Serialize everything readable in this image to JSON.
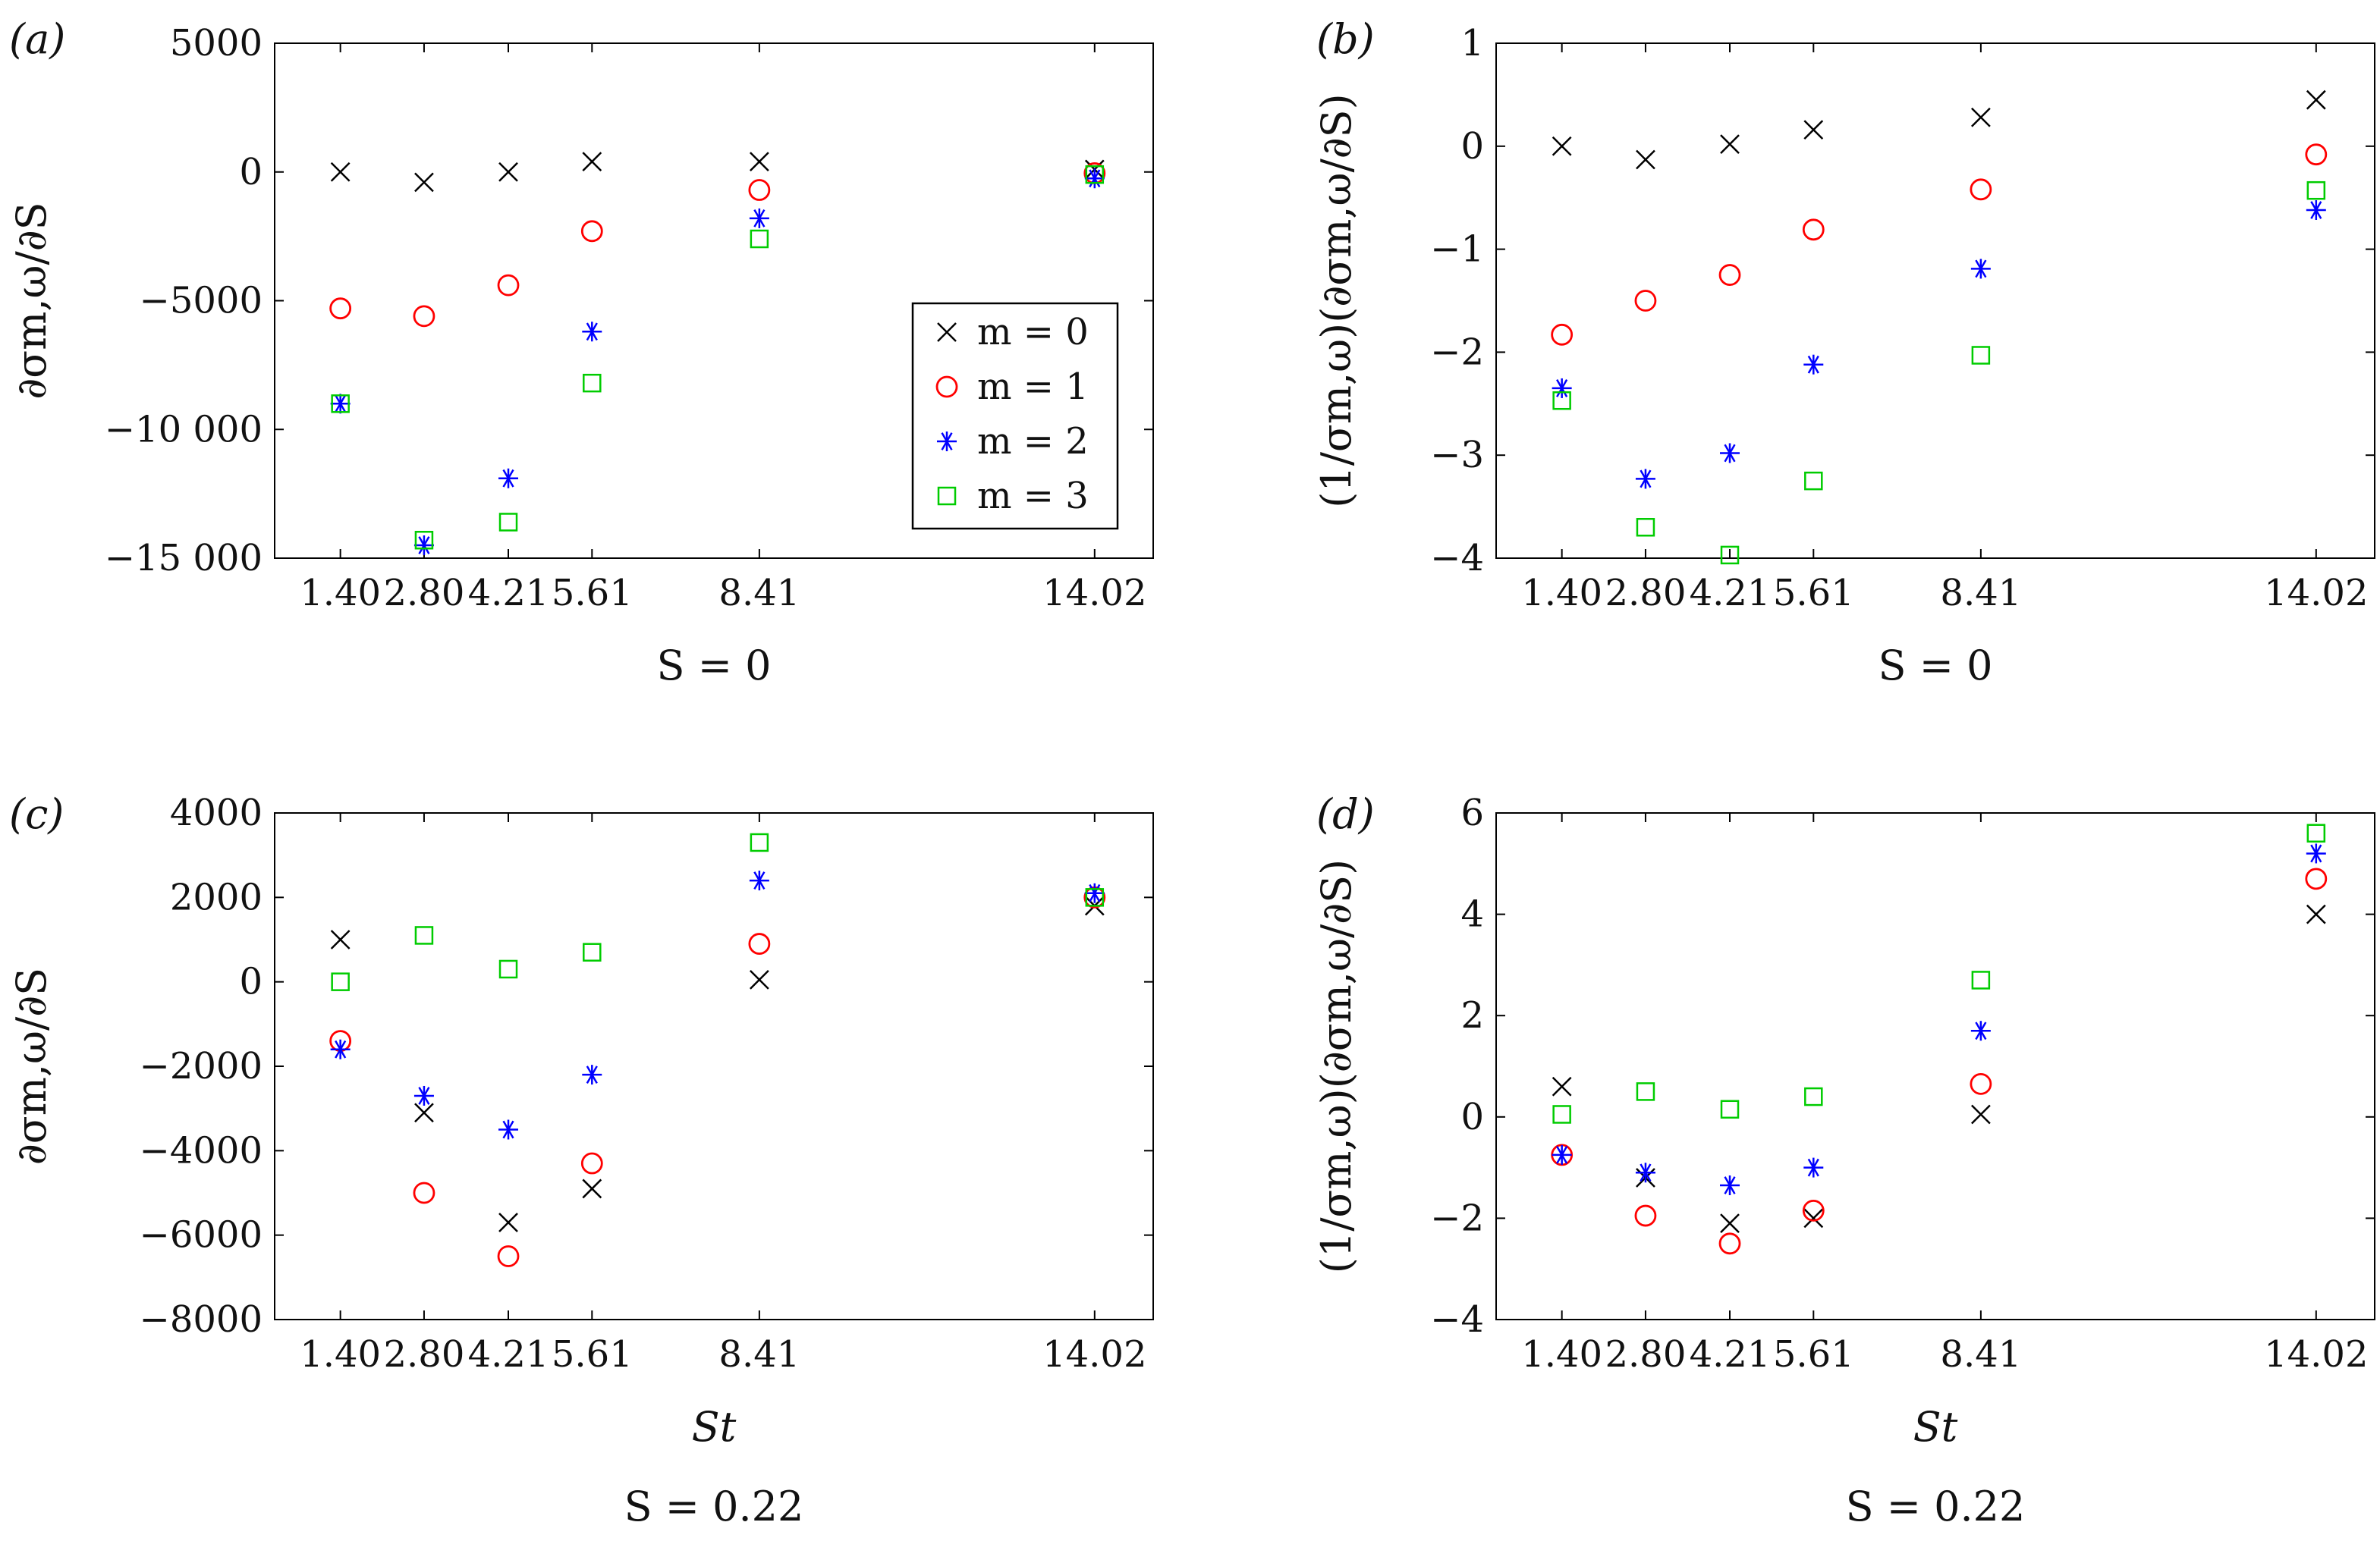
{
  "legend": {
    "entries": [
      {
        "key": "m0",
        "label": "m = 0",
        "marker": "x-cross",
        "color": "#000000"
      },
      {
        "key": "m1",
        "label": "m = 1",
        "marker": "circle",
        "color": "#ff0000"
      },
      {
        "key": "m2",
        "label": "m = 2",
        "marker": "asterisk",
        "color": "#0000ff"
      },
      {
        "key": "m3",
        "label": "m = 3",
        "marker": "square",
        "color": "#00cc00"
      }
    ]
  },
  "chart_data": [
    {
      "type": "scatter",
      "panel": "(a)",
      "ylabel": "∂σm,ω/∂S",
      "xlabel": "",
      "subtitle": "S = 0",
      "categories": [
        "1.40",
        "2.80",
        "4.21",
        "5.61",
        "8.41",
        "14.02"
      ],
      "x": [
        1.4,
        2.8,
        4.21,
        5.61,
        8.41,
        14.02
      ],
      "xlim": [
        0.3,
        15.0
      ],
      "ylim": [
        -15000,
        5000
      ],
      "yticks": [
        5000,
        0,
        -5000,
        -10000,
        -15000
      ],
      "ytick_labels": [
        "5000",
        "0",
        "−5000",
        "−10 000",
        "−15 000"
      ],
      "show_legend": true,
      "series": [
        {
          "name": "m = 0",
          "values": [
            0,
            -400,
            0,
            400,
            400,
            100
          ]
        },
        {
          "name": "m = 1",
          "values": [
            -5300,
            -5600,
            -4400,
            -2300,
            -700,
            -50
          ]
        },
        {
          "name": "m = 2",
          "values": [
            -9000,
            -14500,
            -11900,
            -6200,
            -1800,
            -250
          ]
        },
        {
          "name": "m = 3",
          "values": [
            -9000,
            -14300,
            -13600,
            -8200,
            -2600,
            -100
          ]
        }
      ]
    },
    {
      "type": "scatter",
      "panel": "(b)",
      "ylabel": "(1/σm,ω)(∂σm,ω/∂S)",
      "xlabel": "",
      "subtitle": "S = 0",
      "categories": [
        "1.40",
        "2.80",
        "4.21",
        "5.61",
        "8.41",
        "14.02"
      ],
      "x": [
        1.4,
        2.8,
        4.21,
        5.61,
        8.41,
        14.02
      ],
      "xlim": [
        0.3,
        15.0
      ],
      "ylim": [
        -4,
        1
      ],
      "yticks": [
        1,
        0,
        -1,
        -2,
        -3,
        -4
      ],
      "ytick_labels": [
        "1",
        "0",
        "−1",
        "−2",
        "−3",
        "−4"
      ],
      "show_legend": false,
      "series": [
        {
          "name": "m = 0",
          "values": [
            0.0,
            -0.13,
            0.02,
            0.16,
            0.28,
            0.45
          ]
        },
        {
          "name": "m = 1",
          "values": [
            -1.83,
            -1.5,
            -1.25,
            -0.81,
            -0.42,
            -0.08
          ]
        },
        {
          "name": "m = 2",
          "values": [
            -2.35,
            -3.23,
            -2.98,
            -2.12,
            -1.19,
            -0.62
          ]
        },
        {
          "name": "m = 3",
          "values": [
            -2.47,
            -3.7,
            -3.97,
            -3.25,
            -2.03,
            -0.43
          ]
        }
      ]
    },
    {
      "type": "scatter",
      "panel": "(c)",
      "ylabel": "∂σm,ω/∂S",
      "xlabel": "St",
      "subtitle": "S = 0.22",
      "categories": [
        "1.40",
        "2.80",
        "4.21",
        "5.61",
        "8.41",
        "14.02"
      ],
      "x": [
        1.4,
        2.8,
        4.21,
        5.61,
        8.41,
        14.02
      ],
      "xlim": [
        0.3,
        15.0
      ],
      "ylim": [
        -8000,
        4000
      ],
      "yticks": [
        4000,
        2000,
        0,
        -2000,
        -4000,
        -6000,
        -8000
      ],
      "ytick_labels": [
        "4000",
        "2000",
        "0",
        "−2000",
        "−4000",
        "−6000",
        "−8000"
      ],
      "show_legend": false,
      "series": [
        {
          "name": "m = 0",
          "values": [
            1000,
            -3100,
            -5700,
            -4900,
            50,
            1800
          ]
        },
        {
          "name": "m = 1",
          "values": [
            -1400,
            -5000,
            -6500,
            -4300,
            900,
            2000
          ]
        },
        {
          "name": "m = 2",
          "values": [
            -1600,
            -2700,
            -3500,
            -2200,
            2400,
            2100
          ]
        },
        {
          "name": "m = 3",
          "values": [
            0,
            1100,
            300,
            700,
            3300,
            2000
          ]
        }
      ]
    },
    {
      "type": "scatter",
      "panel": "(d)",
      "ylabel": "(1/σm,ω)(∂σm,ω/∂S)",
      "xlabel": "St",
      "subtitle": "S = 0.22",
      "categories": [
        "1.40",
        "2.80",
        "4.21",
        "5.61",
        "8.41",
        "14.02"
      ],
      "x": [
        1.4,
        2.8,
        4.21,
        5.61,
        8.41,
        14.02
      ],
      "xlim": [
        0.3,
        15.0
      ],
      "ylim": [
        -4,
        6
      ],
      "yticks": [
        6,
        4,
        2,
        0,
        -2,
        -4
      ],
      "ytick_labels": [
        "6",
        "4",
        "2",
        "0",
        "−2",
        "−4"
      ],
      "show_legend": false,
      "series": [
        {
          "name": "m = 0",
          "values": [
            0.6,
            -1.2,
            -2.1,
            -2.0,
            0.05,
            4.0
          ]
        },
        {
          "name": "m = 1",
          "values": [
            -0.75,
            -1.95,
            -2.5,
            -1.85,
            0.65,
            4.7
          ]
        },
        {
          "name": "m = 2",
          "values": [
            -0.75,
            -1.1,
            -1.35,
            -1.0,
            1.7,
            5.2
          ]
        },
        {
          "name": "m = 3",
          "values": [
            0.05,
            0.5,
            0.15,
            0.4,
            2.7,
            5.6
          ]
        }
      ]
    }
  ]
}
